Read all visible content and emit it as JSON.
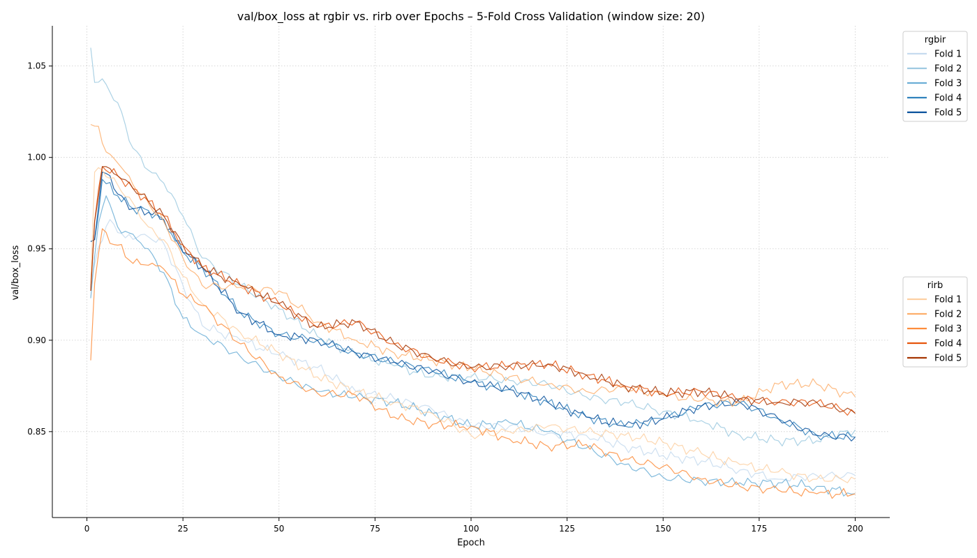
{
  "chart_data": {
    "type": "line",
    "title": "val/box_loss at rgbir vs. rirb over Epochs – 5-Fold Cross Validation (window size: 20)",
    "xlabel": "Epoch",
    "ylabel": "val/box_loss",
    "xlim": [
      -9,
      209
    ],
    "ylim": [
      0.803,
      1.072
    ],
    "xticks": [
      0,
      25,
      50,
      75,
      100,
      125,
      150,
      175,
      200
    ],
    "yticks": [
      0.85,
      0.9,
      0.95,
      1.0,
      1.05
    ],
    "ytick_labels": [
      "0.85",
      "0.90",
      "0.95",
      "1.00",
      "1.05"
    ],
    "grid": true,
    "legends": [
      {
        "title": "rgbir",
        "placement": "upper-right-outside",
        "entries": [
          "Fold 1",
          "Fold 2",
          "Fold 3",
          "Fold 4",
          "Fold 5"
        ],
        "colors": [
          "#c6dbef",
          "#9ecae1",
          "#6baed6",
          "#3182bd",
          "#08519c"
        ]
      },
      {
        "title": "rirb",
        "placement": "center-right-outside",
        "entries": [
          "Fold 1",
          "Fold 2",
          "Fold 3",
          "Fold 4",
          "Fold 5"
        ],
        "colors": [
          "#fdd0a2",
          "#fdae6b",
          "#fd8d3c",
          "#e6550d",
          "#a63603"
        ]
      }
    ],
    "series": [
      {
        "group": "rgbir",
        "name": "Fold 1",
        "color": "#c6dbef",
        "x": [
          1,
          3,
          6,
          10,
          15,
          20,
          25,
          30,
          40,
          50,
          60,
          70,
          80,
          90,
          100,
          110,
          120,
          130,
          140,
          150,
          160,
          170,
          180,
          190,
          200
        ],
        "y": [
          0.931,
          0.951,
          0.966,
          0.956,
          0.958,
          0.953,
          0.93,
          0.908,
          0.9,
          0.892,
          0.885,
          0.872,
          0.868,
          0.862,
          0.853,
          0.853,
          0.849,
          0.848,
          0.842,
          0.837,
          0.834,
          0.829,
          0.824,
          0.826,
          0.826
        ]
      },
      {
        "group": "rgbir",
        "name": "Fold 2",
        "color": "#9ecae1",
        "x": [
          1,
          2,
          4,
          8,
          12,
          16,
          20,
          25,
          30,
          40,
          50,
          60,
          70,
          80,
          90,
          100,
          110,
          120,
          130,
          140,
          150,
          160,
          170,
          180,
          190,
          200
        ],
        "y": [
          1.06,
          1.041,
          1.043,
          1.03,
          1.005,
          0.993,
          0.986,
          0.968,
          0.945,
          0.93,
          0.917,
          0.902,
          0.892,
          0.886,
          0.88,
          0.88,
          0.878,
          0.876,
          0.869,
          0.866,
          0.861,
          0.856,
          0.848,
          0.845,
          0.845,
          0.851
        ]
      },
      {
        "group": "rgbir",
        "name": "Fold 3",
        "color": "#6baed6",
        "x": [
          1,
          3,
          5,
          8,
          12,
          16,
          20,
          25,
          30,
          40,
          50,
          60,
          70,
          80,
          90,
          100,
          110,
          120,
          130,
          140,
          150,
          160,
          170,
          180,
          190,
          200
        ],
        "y": [
          0.923,
          0.964,
          0.979,
          0.962,
          0.958,
          0.95,
          0.937,
          0.912,
          0.903,
          0.891,
          0.88,
          0.872,
          0.869,
          0.866,
          0.86,
          0.853,
          0.855,
          0.85,
          0.841,
          0.832,
          0.825,
          0.823,
          0.822,
          0.822,
          0.82,
          0.816
        ]
      },
      {
        "group": "rgbir",
        "name": "Fold 4",
        "color": "#3182bd",
        "x": [
          1,
          2,
          4,
          8,
          12,
          16,
          20,
          25,
          30,
          40,
          50,
          60,
          70,
          80,
          90,
          100,
          110,
          120,
          130,
          140,
          150,
          160,
          170,
          180,
          190,
          200
        ],
        "y": [
          0.954,
          0.955,
          0.988,
          0.979,
          0.972,
          0.971,
          0.966,
          0.948,
          0.94,
          0.915,
          0.903,
          0.9,
          0.893,
          0.888,
          0.883,
          0.877,
          0.873,
          0.866,
          0.858,
          0.853,
          0.857,
          0.864,
          0.866,
          0.857,
          0.848,
          0.847
        ]
      },
      {
        "group": "rgbir",
        "name": "Fold 5",
        "color": "#08519c",
        "x": [
          1,
          2,
          4,
          6,
          8,
          12,
          16,
          20,
          25,
          30,
          40,
          50,
          60,
          70,
          80,
          90,
          100,
          110,
          120,
          130,
          140,
          150,
          160,
          170,
          180,
          190,
          200
        ],
        "y": [
          0.954,
          0.955,
          0.992,
          0.99,
          0.98,
          0.972,
          0.97,
          0.966,
          0.948,
          0.94,
          0.915,
          0.903,
          0.9,
          0.893,
          0.888,
          0.883,
          0.877,
          0.873,
          0.866,
          0.858,
          0.853,
          0.857,
          0.864,
          0.866,
          0.857,
          0.848,
          0.847
        ]
      },
      {
        "group": "rirb",
        "name": "Fold 1",
        "color": "#fdd0a2",
        "x": [
          1,
          2,
          4,
          8,
          12,
          16,
          20,
          25,
          30,
          40,
          50,
          60,
          70,
          80,
          90,
          100,
          110,
          120,
          130,
          140,
          150,
          160,
          170,
          180,
          190,
          200
        ],
        "y": [
          0.93,
          0.992,
          0.993,
          0.985,
          0.975,
          0.962,
          0.955,
          0.935,
          0.92,
          0.904,
          0.893,
          0.88,
          0.872,
          0.866,
          0.86,
          0.848,
          0.85,
          0.853,
          0.85,
          0.848,
          0.844,
          0.838,
          0.832,
          0.828,
          0.824,
          0.824
        ]
      },
      {
        "group": "rirb",
        "name": "Fold 2",
        "color": "#fdae6b",
        "x": [
          1,
          3,
          5,
          8,
          12,
          16,
          20,
          25,
          30,
          40,
          50,
          60,
          70,
          80,
          90,
          100,
          110,
          120,
          130,
          140,
          150,
          160,
          170,
          180,
          190,
          200
        ],
        "y": [
          1.018,
          1.017,
          1.003,
          0.997,
          0.985,
          0.975,
          0.965,
          0.945,
          0.93,
          0.929,
          0.927,
          0.91,
          0.9,
          0.893,
          0.889,
          0.885,
          0.88,
          0.876,
          0.872,
          0.874,
          0.87,
          0.867,
          0.866,
          0.876,
          0.876,
          0.869
        ]
      },
      {
        "group": "rirb",
        "name": "Fold 3",
        "color": "#fd8d3c",
        "x": [
          1,
          2,
          4,
          6,
          8,
          12,
          16,
          20,
          25,
          30,
          40,
          50,
          60,
          70,
          80,
          90,
          100,
          110,
          120,
          130,
          140,
          150,
          160,
          170,
          180,
          190,
          200
        ],
        "y": [
          0.889,
          0.931,
          0.961,
          0.953,
          0.952,
          0.942,
          0.941,
          0.939,
          0.925,
          0.919,
          0.898,
          0.88,
          0.871,
          0.87,
          0.858,
          0.854,
          0.853,
          0.846,
          0.842,
          0.843,
          0.835,
          0.831,
          0.824,
          0.82,
          0.818,
          0.816,
          0.816
        ]
      },
      {
        "group": "rirb",
        "name": "Fold 4",
        "color": "#e6550d",
        "x": [
          1,
          2,
          4,
          8,
          12,
          16,
          20,
          25,
          30,
          40,
          50,
          60,
          70,
          80,
          90,
          100,
          110,
          120,
          130,
          140,
          150,
          160,
          170,
          180,
          190,
          200
        ],
        "y": [
          0.927,
          0.965,
          0.995,
          0.99,
          0.983,
          0.976,
          0.968,
          0.952,
          0.94,
          0.93,
          0.92,
          0.907,
          0.91,
          0.898,
          0.89,
          0.885,
          0.886,
          0.887,
          0.881,
          0.875,
          0.871,
          0.872,
          0.868,
          0.866,
          0.866,
          0.86
        ]
      },
      {
        "group": "rirb",
        "name": "Fold 5",
        "color": "#a63603",
        "x": [
          1,
          2,
          4,
          8,
          12,
          16,
          20,
          25,
          30,
          40,
          50,
          60,
          70,
          80,
          90,
          100,
          110,
          120,
          130,
          140,
          150,
          160,
          170,
          180,
          190,
          200
        ],
        "y": [
          0.927,
          0.965,
          0.995,
          0.99,
          0.983,
          0.976,
          0.968,
          0.952,
          0.94,
          0.93,
          0.92,
          0.907,
          0.91,
          0.898,
          0.89,
          0.885,
          0.886,
          0.887,
          0.881,
          0.875,
          0.871,
          0.872,
          0.868,
          0.866,
          0.866,
          0.86
        ]
      }
    ]
  }
}
